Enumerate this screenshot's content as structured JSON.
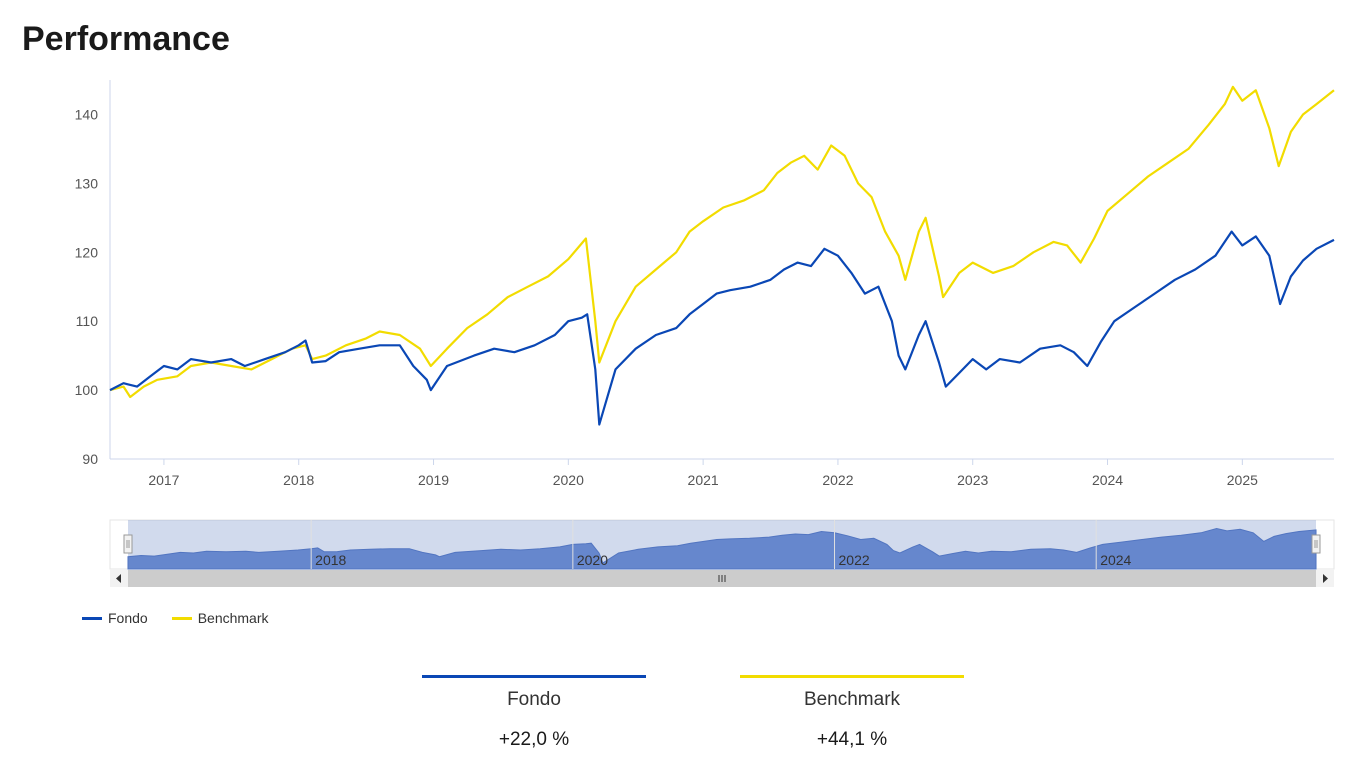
{
  "page_title": "Performance",
  "colors": {
    "fondo": "#0a47b5",
    "benchmark": "#f2dc00",
    "navigator_fill": "#6689d1",
    "navigator_mask": "rgba(102,133,194,0.3)",
    "axis": "#ccd6eb",
    "scrollbar_track": "#f2f2f2",
    "scrollbar_thumb": "#cccccc"
  },
  "chart_data": {
    "type": "line",
    "x_axis": {
      "ticks": [
        "2017",
        "2018",
        "2019",
        "2020",
        "2021",
        "2022",
        "2023",
        "2024",
        "2025"
      ],
      "range": [
        2016.6,
        2025.68
      ]
    },
    "y_axis": {
      "ticks": [
        90,
        100,
        110,
        120,
        130,
        140
      ],
      "range": [
        90,
        145
      ]
    },
    "navigator": {
      "ticks": [
        "2018",
        "2020",
        "2022",
        "2024"
      ]
    },
    "series": [
      {
        "name": "Fondo",
        "color": "#0a47b5",
        "points": [
          [
            2016.6,
            100
          ],
          [
            2016.7,
            101
          ],
          [
            2016.8,
            100.5
          ],
          [
            2016.9,
            102
          ],
          [
            2017.0,
            103.5
          ],
          [
            2017.1,
            103
          ],
          [
            2017.2,
            104.5
          ],
          [
            2017.35,
            104
          ],
          [
            2017.5,
            104.5
          ],
          [
            2017.6,
            103.5
          ],
          [
            2017.75,
            104.5
          ],
          [
            2017.9,
            105.5
          ],
          [
            2018.0,
            106.5
          ],
          [
            2018.05,
            107.2
          ],
          [
            2018.1,
            104
          ],
          [
            2018.2,
            104.2
          ],
          [
            2018.3,
            105.5
          ],
          [
            2018.45,
            106
          ],
          [
            2018.6,
            106.5
          ],
          [
            2018.75,
            106.5
          ],
          [
            2018.85,
            103.5
          ],
          [
            2018.95,
            101.5
          ],
          [
            2018.98,
            100
          ],
          [
            2019.1,
            103.5
          ],
          [
            2019.3,
            105
          ],
          [
            2019.45,
            106
          ],
          [
            2019.6,
            105.5
          ],
          [
            2019.75,
            106.5
          ],
          [
            2019.9,
            108
          ],
          [
            2020.0,
            110
          ],
          [
            2020.1,
            110.5
          ],
          [
            2020.14,
            111
          ],
          [
            2020.2,
            103
          ],
          [
            2020.23,
            95
          ],
          [
            2020.35,
            103
          ],
          [
            2020.5,
            106
          ],
          [
            2020.65,
            108
          ],
          [
            2020.8,
            109
          ],
          [
            2020.9,
            111
          ],
          [
            2021.0,
            112.5
          ],
          [
            2021.1,
            114
          ],
          [
            2021.2,
            114.5
          ],
          [
            2021.35,
            115
          ],
          [
            2021.5,
            116
          ],
          [
            2021.6,
            117.5
          ],
          [
            2021.7,
            118.5
          ],
          [
            2021.8,
            118
          ],
          [
            2021.9,
            120.5
          ],
          [
            2022.0,
            119.5
          ],
          [
            2022.1,
            117
          ],
          [
            2022.2,
            114
          ],
          [
            2022.3,
            115
          ],
          [
            2022.4,
            110
          ],
          [
            2022.45,
            105
          ],
          [
            2022.5,
            103
          ],
          [
            2022.6,
            108
          ],
          [
            2022.65,
            110
          ],
          [
            2022.75,
            104
          ],
          [
            2022.8,
            100.5
          ],
          [
            2022.9,
            102.5
          ],
          [
            2023.0,
            104.5
          ],
          [
            2023.1,
            103
          ],
          [
            2023.2,
            104.5
          ],
          [
            2023.35,
            104
          ],
          [
            2023.5,
            106
          ],
          [
            2023.65,
            106.5
          ],
          [
            2023.75,
            105.5
          ],
          [
            2023.85,
            103.5
          ],
          [
            2023.95,
            107
          ],
          [
            2024.05,
            110
          ],
          [
            2024.2,
            112
          ],
          [
            2024.35,
            114
          ],
          [
            2024.5,
            116
          ],
          [
            2024.65,
            117.5
          ],
          [
            2024.8,
            119.5
          ],
          [
            2024.92,
            123
          ],
          [
            2025.0,
            121
          ],
          [
            2025.1,
            122.3
          ],
          [
            2025.2,
            119.5
          ],
          [
            2025.28,
            112.5
          ],
          [
            2025.36,
            116.5
          ],
          [
            2025.45,
            118.8
          ],
          [
            2025.55,
            120.5
          ],
          [
            2025.68,
            121.8
          ]
        ]
      },
      {
        "name": "Benchmark",
        "color": "#f2dc00",
        "points": [
          [
            2016.6,
            100
          ],
          [
            2016.7,
            100.5
          ],
          [
            2016.75,
            99
          ],
          [
            2016.85,
            100.5
          ],
          [
            2016.95,
            101.5
          ],
          [
            2017.1,
            102
          ],
          [
            2017.2,
            103.5
          ],
          [
            2017.35,
            104
          ],
          [
            2017.5,
            103.5
          ],
          [
            2017.65,
            103
          ],
          [
            2017.8,
            104.5
          ],
          [
            2017.95,
            106
          ],
          [
            2018.05,
            106.5
          ],
          [
            2018.1,
            104.5
          ],
          [
            2018.2,
            105
          ],
          [
            2018.35,
            106.5
          ],
          [
            2018.5,
            107.5
          ],
          [
            2018.6,
            108.5
          ],
          [
            2018.75,
            108
          ],
          [
            2018.9,
            106
          ],
          [
            2018.98,
            103.5
          ],
          [
            2019.1,
            106
          ],
          [
            2019.25,
            109
          ],
          [
            2019.4,
            111
          ],
          [
            2019.55,
            113.5
          ],
          [
            2019.7,
            115
          ],
          [
            2019.85,
            116.5
          ],
          [
            2020.0,
            119
          ],
          [
            2020.13,
            122
          ],
          [
            2020.2,
            110
          ],
          [
            2020.23,
            104
          ],
          [
            2020.35,
            110
          ],
          [
            2020.5,
            115
          ],
          [
            2020.65,
            117.5
          ],
          [
            2020.8,
            120
          ],
          [
            2020.9,
            123
          ],
          [
            2021.0,
            124.5
          ],
          [
            2021.15,
            126.5
          ],
          [
            2021.3,
            127.5
          ],
          [
            2021.45,
            129
          ],
          [
            2021.55,
            131.5
          ],
          [
            2021.65,
            133
          ],
          [
            2021.75,
            134
          ],
          [
            2021.85,
            132
          ],
          [
            2021.95,
            135.5
          ],
          [
            2022.05,
            134
          ],
          [
            2022.15,
            130
          ],
          [
            2022.25,
            128
          ],
          [
            2022.35,
            123
          ],
          [
            2022.45,
            119.5
          ],
          [
            2022.5,
            116
          ],
          [
            2022.6,
            123
          ],
          [
            2022.65,
            125
          ],
          [
            2022.75,
            116.5
          ],
          [
            2022.78,
            113.5
          ],
          [
            2022.9,
            117
          ],
          [
            2023.0,
            118.5
          ],
          [
            2023.15,
            117
          ],
          [
            2023.3,
            118
          ],
          [
            2023.45,
            120
          ],
          [
            2023.6,
            121.5
          ],
          [
            2023.7,
            121
          ],
          [
            2023.8,
            118.5
          ],
          [
            2023.9,
            122
          ],
          [
            2024.0,
            126
          ],
          [
            2024.15,
            128.5
          ],
          [
            2024.3,
            131
          ],
          [
            2024.45,
            133
          ],
          [
            2024.6,
            135
          ],
          [
            2024.75,
            138.5
          ],
          [
            2024.87,
            141.5
          ],
          [
            2024.93,
            144
          ],
          [
            2025.0,
            142
          ],
          [
            2025.1,
            143.5
          ],
          [
            2025.2,
            138
          ],
          [
            2025.27,
            132.5
          ],
          [
            2025.36,
            137.5
          ],
          [
            2025.45,
            140
          ],
          [
            2025.55,
            141.5
          ],
          [
            2025.68,
            143.5
          ]
        ]
      }
    ]
  },
  "legend": {
    "items": [
      {
        "label": "Fondo",
        "color": "#0a47b5"
      },
      {
        "label": "Benchmark",
        "color": "#f2dc00"
      }
    ]
  },
  "summary": [
    {
      "name": "Fondo",
      "value": "+22,0 %",
      "color": "#0a47b5"
    },
    {
      "name": "Benchmark",
      "value": "+44,1 %",
      "color": "#f2dc00"
    }
  ]
}
